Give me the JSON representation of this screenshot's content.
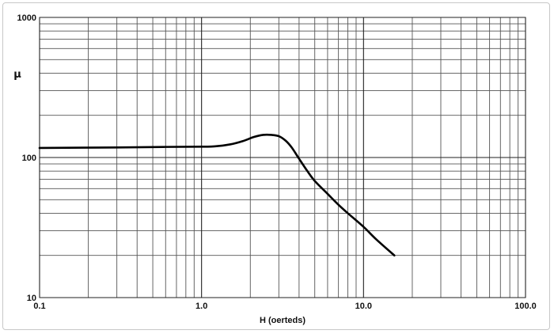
{
  "chart_data": {
    "type": "line",
    "xlabel": "H (oerteds)",
    "ylabel": "μ",
    "x_scale": "log",
    "y_scale": "log",
    "xlim": [
      0.1,
      100.0
    ],
    "ylim": [
      10,
      1000
    ],
    "x_tick_labels": [
      "0.1",
      "1.0",
      "10.0",
      "100.0"
    ],
    "y_tick_labels": [
      "10",
      "100",
      "1000"
    ],
    "grid": true,
    "series": [
      {
        "x": [
          0.1,
          0.3,
          0.6,
          1.0,
          1.2,
          1.5,
          1.8,
          2.1,
          2.4,
          2.7,
          3.0,
          3.3,
          3.6,
          4.0,
          4.5,
          5.0,
          6.0,
          7.0,
          8.0,
          10.0,
          12.0,
          15.5
        ],
        "y": [
          117,
          118,
          119,
          119.5,
          120,
          124,
          131,
          140,
          145,
          145,
          142,
          132,
          118,
          98,
          80,
          68,
          55,
          46,
          40,
          32,
          26,
          20
        ]
      }
    ]
  }
}
